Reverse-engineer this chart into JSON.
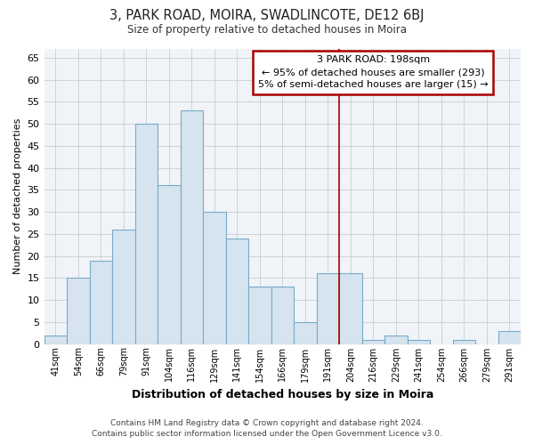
{
  "title": "3, PARK ROAD, MOIRA, SWADLINCOTE, DE12 6BJ",
  "subtitle": "Size of property relative to detached houses in Moira",
  "xlabel": "Distribution of detached houses by size in Moira",
  "ylabel": "Number of detached properties",
  "bar_labels": [
    "41sqm",
    "54sqm",
    "66sqm",
    "79sqm",
    "91sqm",
    "104sqm",
    "116sqm",
    "129sqm",
    "141sqm",
    "154sqm",
    "166sqm",
    "179sqm",
    "191sqm",
    "204sqm",
    "216sqm",
    "229sqm",
    "241sqm",
    "254sqm",
    "266sqm",
    "279sqm",
    "291sqm"
  ],
  "bar_values": [
    2,
    15,
    19,
    26,
    50,
    36,
    53,
    30,
    24,
    13,
    13,
    5,
    16,
    16,
    1,
    2,
    1,
    0,
    1,
    0,
    3
  ],
  "bar_color": "#d6e4f0",
  "bar_edge_color": "#7aaac8",
  "grid_color": "#cccccc",
  "background_color": "#ffffff",
  "plot_bg_color": "#f0f4f8",
  "vline_color": "#aa0000",
  "annotation_title": "3 PARK ROAD: 198sqm",
  "annotation_line1": "← 95% of detached houses are smaller (293)",
  "annotation_line2": "5% of semi-detached houses are larger (15) →",
  "annotation_box_color": "#ffffff",
  "annotation_border_color": "#aa0000",
  "footer_line1": "Contains HM Land Registry data © Crown copyright and database right 2024.",
  "footer_line2": "Contains public sector information licensed under the Open Government Licence v3.0.",
  "ylim": [
    0,
    67
  ],
  "yticks": [
    0,
    5,
    10,
    15,
    20,
    25,
    30,
    35,
    40,
    45,
    50,
    55,
    60,
    65
  ],
  "vline_pos": 12.5
}
